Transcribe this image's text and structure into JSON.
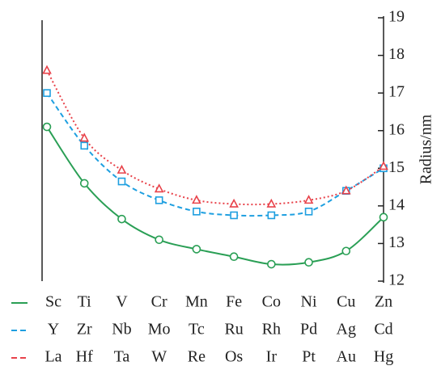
{
  "chart_data": {
    "type": "line",
    "y_label": "Radius/nm",
    "ylim": [
      12,
      19
    ],
    "yticks": [
      12,
      13,
      14,
      15,
      16,
      17,
      18,
      19
    ],
    "series": [
      {
        "color": "#2a9f55",
        "marker": "circle",
        "dash": "solid",
        "elements": [
          "Sc",
          "Ti",
          "V",
          "Cr",
          "Mn",
          "Fe",
          "Co",
          "Ni",
          "Cu",
          "Zn"
        ],
        "values": [
          16.1,
          14.6,
          13.65,
          13.1,
          12.85,
          12.65,
          12.45,
          12.5,
          12.8,
          13.7
        ]
      },
      {
        "color": "#1e9fe0",
        "marker": "square",
        "dash": "dashed",
        "elements": [
          "Y",
          "Zr",
          "Nb",
          "Mo",
          "Tc",
          "Ru",
          "Rh",
          "Pd",
          "Ag",
          "Cd"
        ],
        "values": [
          17.0,
          15.6,
          14.65,
          14.15,
          13.85,
          13.75,
          13.75,
          13.85,
          14.4,
          15.0
        ]
      },
      {
        "color": "#e8424a",
        "marker": "triangle",
        "dash": "dotted",
        "elements": [
          "La",
          "Hf",
          "Ta",
          "W",
          "Re",
          "Os",
          "Ir",
          "Pt",
          "Au",
          "Hg"
        ],
        "values": [
          17.6,
          15.8,
          14.95,
          14.45,
          14.15,
          14.05,
          14.05,
          14.15,
          14.4,
          15.05
        ]
      }
    ]
  }
}
